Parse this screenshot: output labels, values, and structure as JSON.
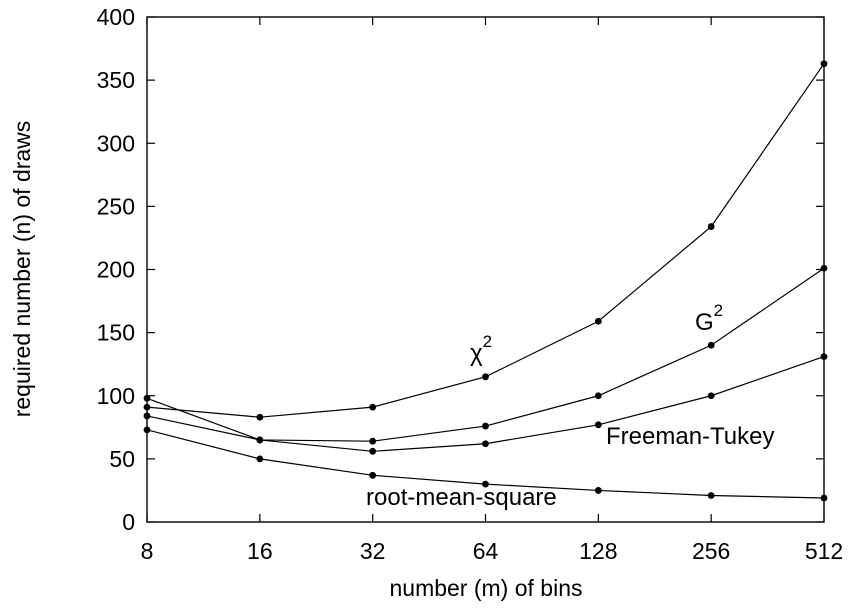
{
  "chart_data": {
    "type": "line",
    "x_scale": "log2",
    "x": [
      8,
      16,
      32,
      64,
      128,
      256,
      512
    ],
    "x_tick_labels": [
      "8",
      "16",
      "32",
      "64",
      "128",
      "256",
      "512"
    ],
    "ylim": [
      0,
      400
    ],
    "y_ticks": [
      0,
      50,
      100,
      150,
      200,
      250,
      300,
      350,
      400
    ],
    "y_tick_labels": [
      "0",
      "50",
      "100",
      "150",
      "200",
      "250",
      "300",
      "350",
      "400"
    ],
    "xlabel": "number (m) of bins",
    "ylabel": "required number (n) of draws",
    "grid": false,
    "series": [
      {
        "name": "χ2",
        "values": [
          98,
          65,
          56,
          62,
          77,
          100,
          131
        ]
      },
      {
        "name": "G2",
        "values": [
          84,
          65,
          64,
          76,
          100,
          140,
          201
        ]
      },
      {
        "name": "Freeman-Tukey",
        "values": [
          91,
          83,
          91,
          115,
          159,
          234,
          363
        ]
      },
      {
        "name": "root-mean-square",
        "values": [
          73,
          50,
          37,
          30,
          25,
          21,
          19
        ]
      }
    ],
    "annotations": {
      "chi_base": "χ",
      "chi_sup": "2",
      "g_base": "G",
      "g_sup": "2",
      "freeman_tukey": "Freeman-Tukey",
      "rms": "root-mean-square"
    },
    "colors": {
      "line": "#000000",
      "marker": "#000000",
      "background": "#ffffff"
    }
  }
}
